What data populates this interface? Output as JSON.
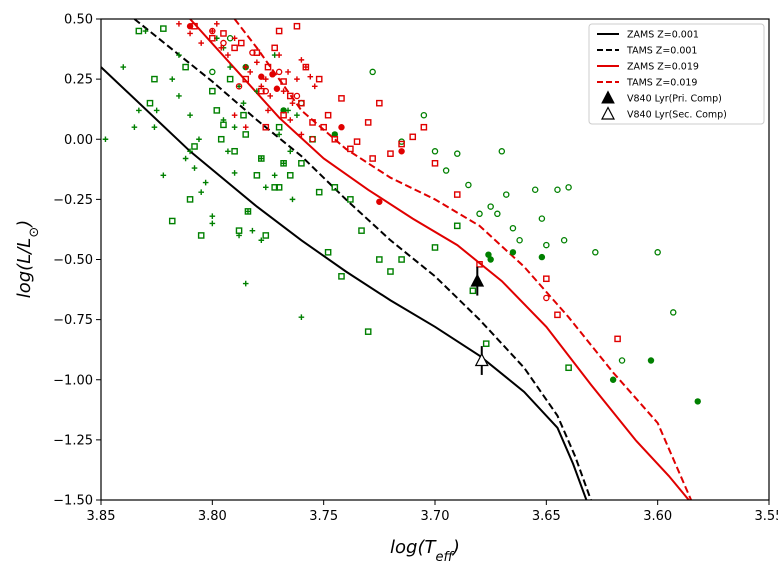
{
  "chart_data": {
    "type": "scatter",
    "title": "",
    "xlabel": "log(T_eff)",
    "ylabel": "log(L/L_sun)",
    "xlim": [
      3.85,
      3.55
    ],
    "ylim": [
      -1.5,
      0.5
    ],
    "xticks": [
      "3.85",
      "3.80",
      "3.75",
      "3.70",
      "3.65",
      "3.60",
      "3.55"
    ],
    "yticks": [
      "0.50",
      "0.25",
      "0.00",
      "−0.25",
      "−0.50",
      "−0.75",
      "−1.00",
      "−1.25",
      "−1.50"
    ],
    "colors": {
      "green": "#008000",
      "red": "#e00000",
      "black": "#000000"
    },
    "lines": [
      {
        "name": "ZAMS Z=0.001",
        "color": "#000000",
        "dash": false,
        "x": [
          3.85,
          3.81,
          3.78,
          3.76,
          3.74,
          3.72,
          3.7,
          3.68,
          3.66,
          3.645,
          3.638,
          3.632
        ],
        "y": [
          0.3,
          -0.05,
          -0.28,
          -0.42,
          -0.55,
          -0.67,
          -0.78,
          -0.9,
          -1.05,
          -1.2,
          -1.35,
          -1.5
        ]
      },
      {
        "name": "TAMS Z=0.001",
        "color": "#000000",
        "dash": true,
        "x": [
          3.835,
          3.8,
          3.78,
          3.76,
          3.74,
          3.72,
          3.7,
          3.68,
          3.66,
          3.645,
          3.637,
          3.63
        ],
        "y": [
          0.5,
          0.24,
          0.08,
          -0.07,
          -0.25,
          -0.42,
          -0.57,
          -0.75,
          -0.95,
          -1.15,
          -1.32,
          -1.5
        ]
      },
      {
        "name": "ZAMS Z=0.019",
        "color": "#e00000",
        "dash": false,
        "x": [
          3.81,
          3.77,
          3.75,
          3.73,
          3.71,
          3.69,
          3.67,
          3.65,
          3.63,
          3.61,
          3.595,
          3.586
        ],
        "y": [
          0.5,
          0.09,
          -0.08,
          -0.21,
          -0.33,
          -0.44,
          -0.59,
          -0.78,
          -1.02,
          -1.25,
          -1.4,
          -1.5
        ]
      },
      {
        "name": "TAMS Z=0.019",
        "color": "#e00000",
        "dash": true,
        "x": [
          3.79,
          3.78,
          3.76,
          3.74,
          3.72,
          3.7,
          3.68,
          3.66,
          3.64,
          3.62,
          3.6,
          3.585
        ],
        "y": [
          0.5,
          0.38,
          0.12,
          -0.04,
          -0.16,
          -0.25,
          -0.36,
          -0.53,
          -0.74,
          -0.97,
          -1.18,
          -1.5
        ]
      }
    ],
    "series": [
      {
        "name": "Green plus",
        "color": "#008000",
        "marker": "plus",
        "x": [
          3.848,
          3.84,
          3.833,
          3.826,
          3.822,
          3.818,
          3.815,
          3.812,
          3.81,
          3.808,
          3.806,
          3.803,
          3.8,
          3.798,
          3.795,
          3.793,
          3.79,
          3.788,
          3.786,
          3.784,
          3.782,
          3.78,
          3.778,
          3.776,
          3.772,
          3.77,
          3.768,
          3.766,
          3.764,
          3.762,
          3.76,
          3.83,
          3.815,
          3.805,
          3.792,
          3.785,
          3.778,
          3.772,
          3.79,
          3.8,
          3.81,
          3.825,
          3.835,
          3.795,
          3.788,
          3.765
        ],
        "y": [
          0.0,
          0.3,
          0.12,
          0.05,
          -0.15,
          0.25,
          0.35,
          -0.08,
          -0.05,
          -0.12,
          0.0,
          -0.18,
          -0.32,
          0.42,
          0.38,
          -0.05,
          0.05,
          -0.4,
          0.15,
          -0.3,
          -0.38,
          0.2,
          -0.42,
          -0.2,
          -0.15,
          0.02,
          -0.1,
          0.12,
          -0.25,
          0.1,
          -0.74,
          0.45,
          0.18,
          -0.22,
          0.3,
          -0.6,
          -0.08,
          0.35,
          -0.14,
          -0.35,
          0.1,
          0.12,
          0.05,
          0.08,
          0.22,
          -0.05
        ]
      },
      {
        "name": "Green open square",
        "color": "#008000",
        "marker": "open-square",
        "x": [
          3.833,
          3.828,
          3.826,
          3.822,
          3.818,
          3.812,
          3.81,
          3.808,
          3.805,
          3.8,
          3.798,
          3.796,
          3.792,
          3.79,
          3.788,
          3.786,
          3.784,
          3.78,
          3.778,
          3.776,
          3.772,
          3.77,
          3.768,
          3.765,
          3.76,
          3.755,
          3.752,
          3.748,
          3.745,
          3.742,
          3.738,
          3.733,
          3.73,
          3.725,
          3.72,
          3.715,
          3.7,
          3.69,
          3.683,
          3.677,
          3.64,
          3.785,
          3.795,
          3.77
        ],
        "y": [
          0.45,
          0.15,
          0.25,
          0.46,
          -0.34,
          0.3,
          -0.25,
          -0.03,
          -0.4,
          0.2,
          0.12,
          0.0,
          0.25,
          -0.05,
          -0.38,
          0.1,
          -0.3,
          -0.15,
          -0.08,
          -0.4,
          -0.2,
          0.05,
          -0.1,
          -0.15,
          -0.1,
          0.0,
          -0.22,
          -0.47,
          -0.2,
          -0.57,
          -0.25,
          -0.38,
          -0.8,
          -0.5,
          -0.55,
          -0.5,
          -0.45,
          -0.36,
          -0.63,
          -0.85,
          -0.95,
          0.02,
          0.06,
          -0.2
        ]
      },
      {
        "name": "Green open circle",
        "color": "#008000",
        "marker": "open-circle",
        "x": [
          3.8,
          3.792,
          3.728,
          3.715,
          3.705,
          3.7,
          3.695,
          3.69,
          3.685,
          3.68,
          3.675,
          3.672,
          3.67,
          3.668,
          3.665,
          3.662,
          3.655,
          3.652,
          3.65,
          3.645,
          3.642,
          3.64,
          3.628,
          3.616,
          3.6,
          3.593,
          3.76
        ],
        "y": [
          0.28,
          0.42,
          0.28,
          -0.01,
          0.1,
          -0.05,
          -0.13,
          -0.06,
          -0.19,
          -0.31,
          -0.28,
          -0.31,
          -0.05,
          -0.23,
          -0.37,
          -0.42,
          -0.21,
          -0.33,
          -0.44,
          -0.21,
          -0.42,
          -0.2,
          -0.47,
          -0.92,
          -0.47,
          -0.72,
          0.15
        ]
      },
      {
        "name": "Green filled circle",
        "color": "#008000",
        "marker": "filled-circle",
        "x": [
          3.785,
          3.768,
          3.745,
          3.676,
          3.675,
          3.665,
          3.652,
          3.62,
          3.603,
          3.582
        ],
        "y": [
          0.3,
          0.12,
          0.02,
          -0.48,
          -0.5,
          -0.47,
          -0.49,
          -1.0,
          -0.92,
          -1.09
        ]
      },
      {
        "name": "Red plus",
        "color": "#e00000",
        "marker": "plus",
        "x": [
          3.815,
          3.81,
          3.805,
          3.8,
          3.798,
          3.796,
          3.793,
          3.79,
          3.785,
          3.783,
          3.78,
          3.778,
          3.776,
          3.774,
          3.77,
          3.768,
          3.766,
          3.764,
          3.762,
          3.76,
          3.758,
          3.756,
          3.754,
          3.79,
          3.785,
          3.775,
          3.765,
          3.76
        ],
        "y": [
          0.48,
          0.44,
          0.4,
          0.45,
          0.48,
          0.38,
          0.35,
          0.42,
          0.3,
          0.28,
          0.32,
          0.22,
          0.25,
          0.18,
          0.35,
          0.2,
          0.28,
          0.15,
          0.25,
          0.33,
          0.3,
          0.26,
          0.22,
          0.1,
          0.05,
          0.12,
          0.08,
          0.02
        ]
      },
      {
        "name": "Red open square",
        "color": "#e00000",
        "marker": "open-square",
        "x": [
          3.808,
          3.8,
          3.795,
          3.79,
          3.787,
          3.785,
          3.78,
          3.778,
          3.775,
          3.772,
          3.77,
          3.768,
          3.765,
          3.762,
          3.76,
          3.758,
          3.755,
          3.752,
          3.75,
          3.748,
          3.745,
          3.742,
          3.738,
          3.735,
          3.73,
          3.728,
          3.725,
          3.72,
          3.715,
          3.71,
          3.705,
          3.7,
          3.69,
          3.68,
          3.65,
          3.645,
          3.618,
          3.768,
          3.776
        ],
        "y": [
          0.47,
          0.42,
          0.44,
          0.38,
          0.4,
          0.25,
          0.36,
          0.2,
          0.3,
          0.38,
          0.45,
          0.24,
          0.18,
          0.47,
          0.15,
          0.3,
          0.07,
          0.25,
          0.05,
          0.1,
          0.0,
          0.17,
          -0.04,
          -0.01,
          0.07,
          -0.08,
          0.15,
          -0.06,
          -0.02,
          0.01,
          0.05,
          -0.1,
          -0.23,
          -0.52,
          -0.58,
          -0.73,
          -0.83,
          0.1,
          0.05
        ]
      },
      {
        "name": "Red open circle",
        "color": "#e00000",
        "marker": "open-circle",
        "x": [
          3.8,
          3.795,
          3.788,
          3.782,
          3.776,
          3.77,
          3.762,
          3.755,
          3.65
        ],
        "y": [
          0.45,
          0.4,
          0.22,
          0.36,
          0.2,
          0.28,
          0.18,
          0.0,
          -0.66
        ]
      },
      {
        "name": "Red filled circle",
        "color": "#e00000",
        "marker": "filled-circle",
        "x": [
          3.81,
          3.778,
          3.773,
          3.771,
          3.742,
          3.725,
          3.715
        ],
        "y": [
          0.47,
          0.26,
          0.27,
          0.21,
          0.05,
          -0.26,
          -0.05
        ]
      }
    ],
    "targets": [
      {
        "name": "V840 Lyr(Pri. Comp)",
        "marker": "filled-triangle",
        "x": 3.681,
        "y": -0.59,
        "yerr": 0.06
      },
      {
        "name": "V840 Lyr(Sec. Comp)",
        "marker": "open-triangle",
        "x": 3.679,
        "y": -0.92,
        "yerr": 0.06
      }
    ],
    "legend": {
      "position": "top-right",
      "entries": [
        {
          "label": "ZAMS Z=0.001",
          "kind": "line",
          "color": "#000000",
          "dash": false
        },
        {
          "label": "TAMS Z=0.001",
          "kind": "line",
          "color": "#000000",
          "dash": true
        },
        {
          "label": "ZAMS Z=0.019",
          "kind": "line",
          "color": "#e00000",
          "dash": false
        },
        {
          "label": "TAMS Z=0.019",
          "kind": "line",
          "color": "#e00000",
          "dash": true
        },
        {
          "label": "V840 Lyr(Pri. Comp)",
          "kind": "filled-triangle",
          "color": "#000000"
        },
        {
          "label": "V840 Lyr(Sec. Comp)",
          "kind": "open-triangle",
          "color": "#000000"
        }
      ]
    }
  }
}
